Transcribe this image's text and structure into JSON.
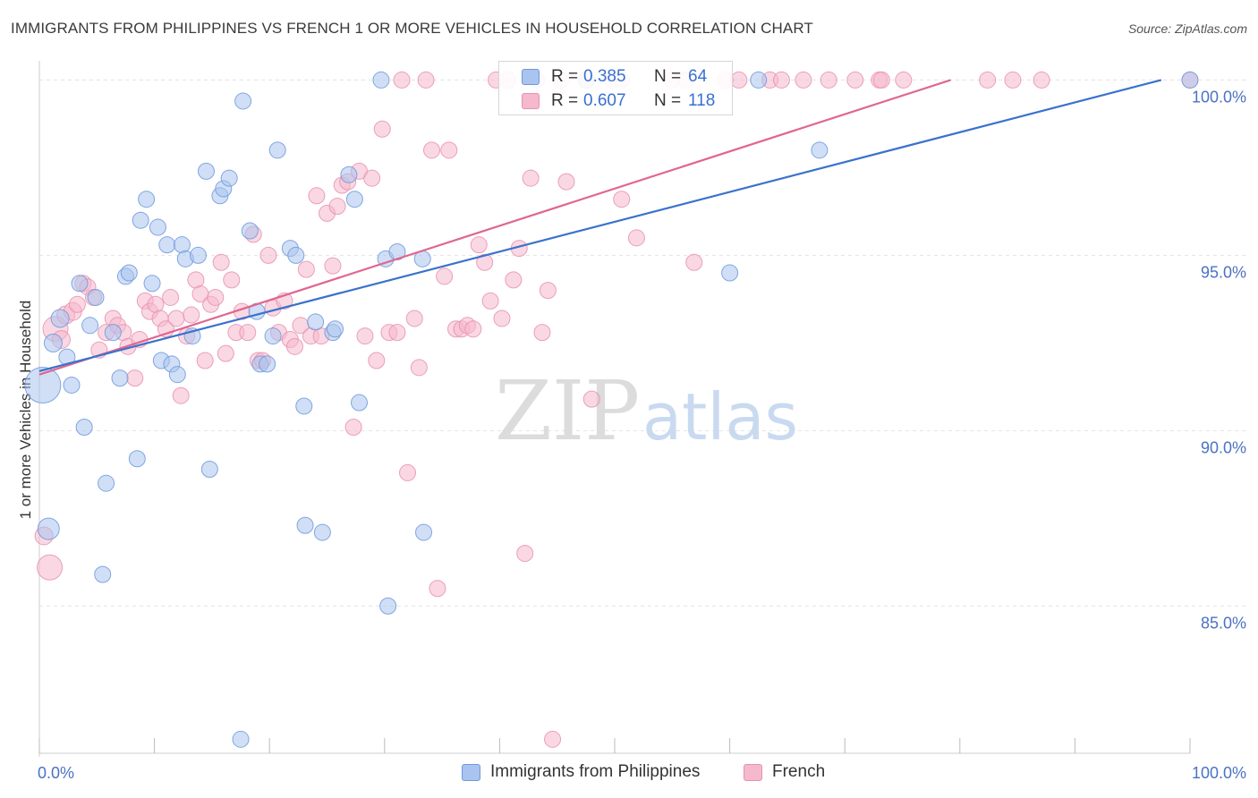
{
  "header": {
    "title": "IMMIGRANTS FROM PHILIPPINES VS FRENCH 1 OR MORE VEHICLES IN HOUSEHOLD CORRELATION CHART",
    "source": "Source: ZipAtlas.com"
  },
  "watermark": {
    "zip": "ZIP",
    "atlas": "atlas"
  },
  "legend": {
    "rows": [
      {
        "r_label": "R =",
        "r_value": "0.385",
        "n_label": "N =",
        "n_value": "64"
      },
      {
        "r_label": "R =",
        "r_value": "0.607",
        "n_label": "N =",
        "n_value": "118"
      }
    ]
  },
  "colors": {
    "blue_fill": "#a9c4ee",
    "blue_stroke": "#6f98dc",
    "blue_line": "#3a72cc",
    "pink_fill": "#f5b8cc",
    "pink_stroke": "#e891ae",
    "pink_line": "#e0668f",
    "tick_text": "#4a72c4",
    "grid": "#e2e2e2"
  },
  "chart_data": {
    "type": "scatter",
    "title": "IMMIGRANTS FROM PHILIPPINES VS FRENCH 1 OR MORE VEHICLES IN HOUSEHOLD CORRELATION CHART",
    "xlabel": "",
    "ylabel": "1 or more Vehicles in Household",
    "xlim": [
      0,
      100
    ],
    "ylim": [
      80.8,
      100.7
    ],
    "x_tick_labels": [
      "0.0%",
      "100.0%"
    ],
    "y_ticks": [
      100,
      95,
      90,
      85
    ],
    "y_tick_labels": [
      "100.0%",
      "95.0%",
      "90.0%",
      "85.0%"
    ],
    "grid": "horizontal dashed",
    "legend_placement": "bottom-center",
    "series": [
      {
        "name": "Immigrants from Philippines",
        "color": "#a9c4ee",
        "R": 0.385,
        "N": 64,
        "trend": {
          "x": [
            0,
            97.5
          ],
          "y": [
            91.7,
            100.0
          ]
        },
        "points": [
          [
            0.3,
            91.3,
            20
          ],
          [
            0.8,
            87.2,
            12
          ],
          [
            1.2,
            92.5,
            10
          ],
          [
            1.8,
            93.2,
            10
          ],
          [
            2.4,
            92.1,
            9
          ],
          [
            2.8,
            91.3,
            9
          ],
          [
            3.5,
            94.2,
            9
          ],
          [
            3.9,
            90.1,
            9
          ],
          [
            4.4,
            93.0,
            9
          ],
          [
            4.9,
            93.8,
            9
          ],
          [
            5.5,
            85.9,
            9
          ],
          [
            5.8,
            88.5,
            9
          ],
          [
            6.4,
            92.8,
            9
          ],
          [
            7.0,
            91.5,
            9
          ],
          [
            7.5,
            94.4,
            9
          ],
          [
            7.8,
            94.5,
            9
          ],
          [
            8.5,
            89.2,
            9
          ],
          [
            8.8,
            96.0,
            9
          ],
          [
            9.3,
            96.6,
            9
          ],
          [
            9.8,
            94.2,
            9
          ],
          [
            10.3,
            95.8,
            9
          ],
          [
            10.6,
            92.0,
            9
          ],
          [
            11.1,
            95.3,
            9
          ],
          [
            11.5,
            91.9,
            9
          ],
          [
            12.0,
            91.6,
            9
          ],
          [
            12.4,
            95.3,
            9
          ],
          [
            12.7,
            94.9,
            9
          ],
          [
            13.3,
            92.7,
            9
          ],
          [
            13.8,
            95.0,
            9
          ],
          [
            14.5,
            97.4,
            9
          ],
          [
            14.8,
            88.9,
            9
          ],
          [
            15.7,
            96.7,
            9
          ],
          [
            16.0,
            96.9,
            9
          ],
          [
            16.5,
            97.2,
            9
          ],
          [
            17.5,
            81.2,
            9
          ],
          [
            17.7,
            99.4,
            9
          ],
          [
            18.3,
            95.7,
            9
          ],
          [
            18.9,
            93.4,
            9
          ],
          [
            19.2,
            91.9,
            9
          ],
          [
            19.8,
            91.9,
            9
          ],
          [
            20.3,
            92.7,
            9
          ],
          [
            20.7,
            98.0,
            9
          ],
          [
            21.8,
            95.2,
            9
          ],
          [
            22.3,
            95.0,
            9
          ],
          [
            23.0,
            90.7,
            9
          ],
          [
            23.1,
            87.3,
            9
          ],
          [
            24.0,
            93.1,
            9
          ],
          [
            24.6,
            87.1,
            9
          ],
          [
            25.5,
            92.8,
            9
          ],
          [
            25.7,
            92.9,
            9
          ],
          [
            26.9,
            97.3,
            9
          ],
          [
            27.4,
            96.6,
            9
          ],
          [
            27.8,
            90.8,
            9
          ],
          [
            29.7,
            100.0,
            9
          ],
          [
            30.1,
            94.9,
            9
          ],
          [
            30.3,
            85.0,
            9
          ],
          [
            31.1,
            95.1,
            9
          ],
          [
            33.3,
            94.9,
            9
          ],
          [
            33.4,
            87.1,
            9
          ],
          [
            47.5,
            100.0,
            9
          ],
          [
            60.0,
            94.5,
            9
          ],
          [
            62.5,
            100.0,
            9
          ],
          [
            67.8,
            98.0,
            9
          ],
          [
            100.0,
            100.0,
            9
          ]
        ]
      },
      {
        "name": "French",
        "color": "#f5b8cc",
        "R": 0.607,
        "N": 118,
        "trend": {
          "x": [
            0,
            79.2
          ],
          "y": [
            91.6,
            100.0
          ]
        },
        "points": [
          [
            0.4,
            87.0,
            10
          ],
          [
            0.9,
            86.1,
            14
          ],
          [
            1.4,
            92.9,
            14
          ],
          [
            1.9,
            92.6,
            10
          ],
          [
            2.3,
            93.3,
            10
          ],
          [
            2.9,
            93.4,
            10
          ],
          [
            3.3,
            93.6,
            9
          ],
          [
            3.8,
            94.2,
            9
          ],
          [
            4.2,
            94.1,
            9
          ],
          [
            4.7,
            93.8,
            9
          ],
          [
            5.2,
            92.3,
            9
          ],
          [
            5.8,
            92.8,
            9
          ],
          [
            6.4,
            93.2,
            9
          ],
          [
            6.8,
            93.0,
            9
          ],
          [
            7.3,
            92.8,
            9
          ],
          [
            7.7,
            92.4,
            9
          ],
          [
            8.3,
            91.5,
            9
          ],
          [
            8.7,
            92.6,
            9
          ],
          [
            9.2,
            93.7,
            9
          ],
          [
            9.6,
            93.4,
            9
          ],
          [
            10.1,
            93.6,
            9
          ],
          [
            10.5,
            93.2,
            9
          ],
          [
            11.0,
            92.9,
            9
          ],
          [
            11.4,
            93.8,
            9
          ],
          [
            11.9,
            93.2,
            9
          ],
          [
            12.3,
            91.0,
            9
          ],
          [
            12.8,
            92.7,
            9
          ],
          [
            13.2,
            93.3,
            9
          ],
          [
            13.6,
            94.3,
            9
          ],
          [
            14.0,
            93.9,
            9
          ],
          [
            14.4,
            92.0,
            9
          ],
          [
            14.9,
            93.6,
            9
          ],
          [
            15.3,
            93.8,
            9
          ],
          [
            15.8,
            94.8,
            9
          ],
          [
            16.2,
            92.2,
            9
          ],
          [
            16.7,
            94.3,
            9
          ],
          [
            17.1,
            92.8,
            9
          ],
          [
            17.6,
            93.4,
            9
          ],
          [
            18.1,
            92.8,
            9
          ],
          [
            18.6,
            95.6,
            9
          ],
          [
            19.0,
            92.0,
            9
          ],
          [
            19.4,
            92.0,
            9
          ],
          [
            19.9,
            95.0,
            9
          ],
          [
            20.3,
            93.5,
            9
          ],
          [
            20.8,
            92.8,
            9
          ],
          [
            21.3,
            93.7,
            9
          ],
          [
            21.8,
            92.6,
            9
          ],
          [
            22.2,
            92.4,
            9
          ],
          [
            22.7,
            93.0,
            9
          ],
          [
            23.2,
            94.6,
            9
          ],
          [
            23.6,
            92.7,
            9
          ],
          [
            24.1,
            96.7,
            9
          ],
          [
            24.5,
            92.7,
            9
          ],
          [
            25.0,
            96.2,
            9
          ],
          [
            25.5,
            94.7,
            9
          ],
          [
            25.9,
            96.4,
            9
          ],
          [
            26.3,
            97.0,
            9
          ],
          [
            26.8,
            97.1,
            9
          ],
          [
            27.3,
            90.1,
            9
          ],
          [
            27.8,
            97.4,
            9
          ],
          [
            28.3,
            92.7,
            9
          ],
          [
            28.9,
            97.2,
            9
          ],
          [
            29.3,
            92.0,
            9
          ],
          [
            29.8,
            98.6,
            9
          ],
          [
            30.4,
            92.8,
            9
          ],
          [
            31.1,
            92.8,
            9
          ],
          [
            31.5,
            100.0,
            9
          ],
          [
            32.0,
            88.8,
            9
          ],
          [
            32.6,
            93.2,
            9
          ],
          [
            33.0,
            91.8,
            9
          ],
          [
            33.6,
            100.0,
            9
          ],
          [
            34.1,
            98.0,
            9
          ],
          [
            34.6,
            85.5,
            9
          ],
          [
            35.2,
            94.4,
            9
          ],
          [
            35.6,
            98.0,
            9
          ],
          [
            36.2,
            92.9,
            9
          ],
          [
            36.7,
            92.9,
            9
          ],
          [
            37.2,
            93.0,
            9
          ],
          [
            37.7,
            92.9,
            9
          ],
          [
            38.2,
            95.3,
            9
          ],
          [
            38.7,
            94.8,
            9
          ],
          [
            39.2,
            93.7,
            9
          ],
          [
            39.7,
            100.0,
            9
          ],
          [
            40.2,
            93.2,
            9
          ],
          [
            40.7,
            100.0,
            9
          ],
          [
            41.2,
            94.3,
            9
          ],
          [
            41.7,
            95.2,
            9
          ],
          [
            42.2,
            86.5,
            9
          ],
          [
            42.7,
            97.2,
            9
          ],
          [
            43.2,
            100.0,
            9
          ],
          [
            43.7,
            92.8,
            9
          ],
          [
            44.2,
            94.0,
            9
          ],
          [
            44.6,
            81.2,
            9
          ],
          [
            45.3,
            100.0,
            9
          ],
          [
            45.8,
            97.1,
            9
          ],
          [
            47.6,
            100.0,
            9
          ],
          [
            48.0,
            90.9,
            9
          ],
          [
            49.8,
            100.0,
            9
          ],
          [
            50.6,
            100.0,
            9
          ],
          [
            50.6,
            96.6,
            9
          ],
          [
            51.9,
            95.5,
            9
          ],
          [
            55.0,
            100.0,
            9
          ],
          [
            56.2,
            100.0,
            9
          ],
          [
            56.9,
            94.8,
            9
          ],
          [
            59.6,
            100.0,
            9
          ],
          [
            60.8,
            100.0,
            9
          ],
          [
            63.5,
            100.0,
            9
          ],
          [
            64.5,
            100.0,
            9
          ],
          [
            66.4,
            100.0,
            9
          ],
          [
            68.6,
            100.0,
            9
          ],
          [
            70.9,
            100.0,
            9
          ],
          [
            73.0,
            100.0,
            9
          ],
          [
            73.2,
            100.0,
            9
          ],
          [
            75.1,
            100.0,
            9
          ],
          [
            82.4,
            100.0,
            9
          ],
          [
            84.6,
            100.0,
            9
          ],
          [
            87.1,
            100.0,
            9
          ],
          [
            100.0,
            100.0,
            9
          ]
        ]
      }
    ]
  }
}
